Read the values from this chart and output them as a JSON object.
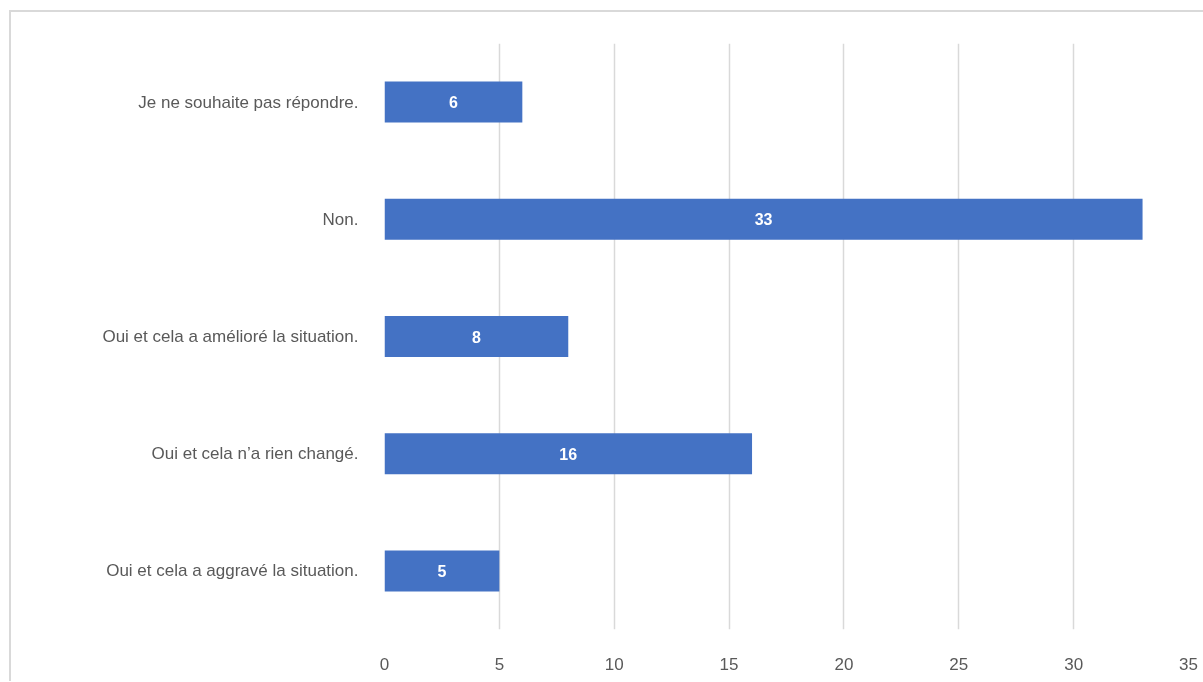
{
  "chart_data": {
    "type": "bar",
    "orientation": "horizontal",
    "categories": [
      "Je ne souhaite pas répondre.",
      "Non.",
      "Oui et cela a amélioré la situation.",
      "Oui et cela n’a rien changé.",
      "Oui et cela a aggravé la situation."
    ],
    "values": [
      6,
      33,
      8,
      16,
      5
    ],
    "color": "#4472c4",
    "xlim": [
      0,
      35
    ],
    "xticks": [
      0,
      5,
      10,
      15,
      20,
      25,
      30,
      35
    ],
    "grid": "x",
    "data_labels": true
  }
}
